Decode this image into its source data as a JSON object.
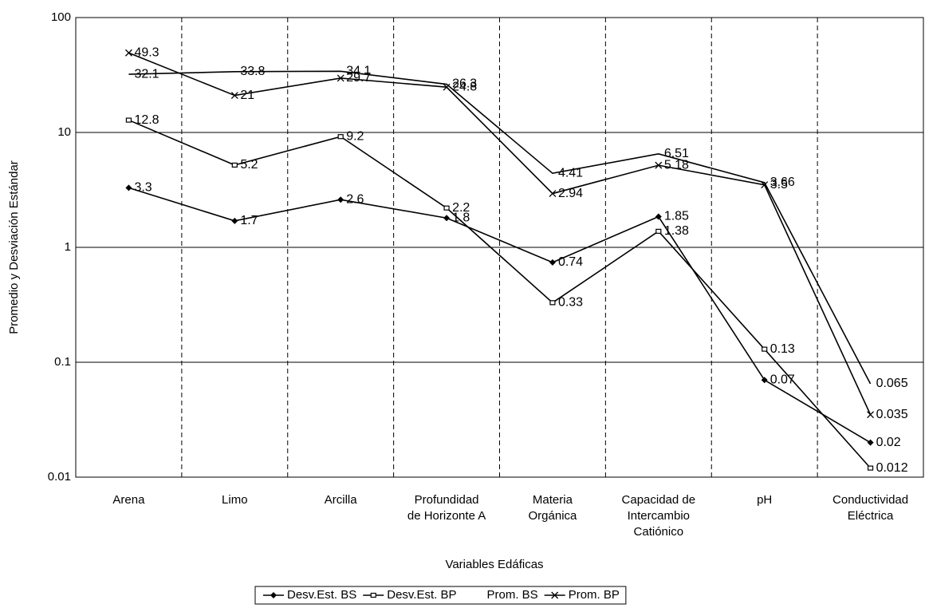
{
  "chart_data": {
    "type": "line",
    "x_label": "Variables Edáficas",
    "y_label": "Promedio y Desviación Estándar",
    "categories": [
      "Arena",
      "Limo",
      "Arcilla",
      "Profundidad\nde Horizonte A",
      "Materia\nOrgánica",
      "Capacidad de\nIntercambio\nCatiónico",
      "pH",
      "Conductividad\nEléctrica"
    ],
    "series": [
      {
        "name": "Desv.Est. BS",
        "color": "#000000",
        "marker": "diamond",
        "values": [
          3.3,
          1.7,
          2.6,
          1.8,
          0.74,
          1.85,
          0.07,
          0.02
        ]
      },
      {
        "name": "Desv.Est. BP",
        "color": "#000000",
        "marker": "square",
        "values": [
          12.8,
          5.2,
          9.2,
          2.2,
          0.33,
          1.38,
          0.13,
          0.012
        ]
      },
      {
        "name": "Prom. BS",
        "color": "#000000",
        "marker": "none",
        "values": [
          32.1,
          33.8,
          34.1,
          26.3,
          4.41,
          6.51,
          3.66,
          0.065
        ]
      },
      {
        "name": "Prom. BP",
        "color": "#000000",
        "marker": "x",
        "values": [
          49.3,
          21,
          29.7,
          24.8,
          2.94,
          5.18,
          3.5,
          0.035
        ]
      }
    ],
    "ylim": [
      0.01,
      100
    ],
    "yticks": [
      0.01,
      0.1,
      1,
      10,
      100
    ],
    "log_y": true,
    "grid": true,
    "legend": "bottom"
  }
}
